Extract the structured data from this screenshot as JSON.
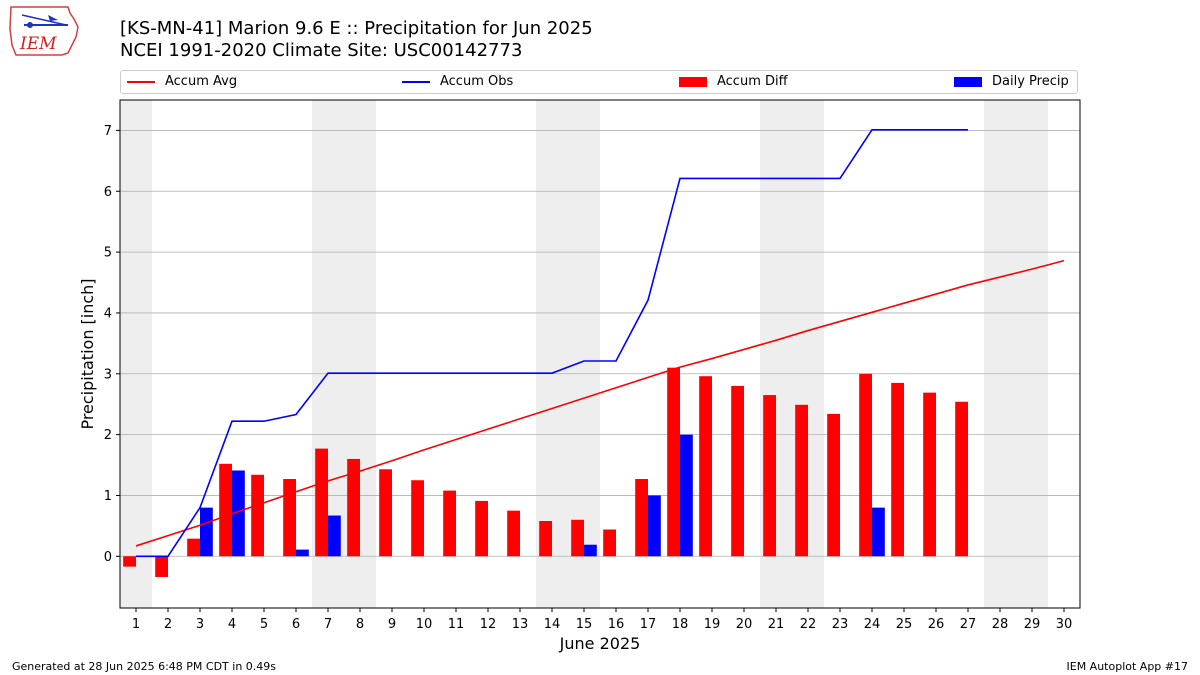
{
  "logo": {
    "text": "IEM"
  },
  "title_line1": "[KS-MN-41] Marion 9.6 E :: Precipitation for Jun 2025",
  "title_line2": "NCEI 1991-2020 Climate Site: USC00142773",
  "legend": [
    {
      "label": "Accum Avg",
      "kind": "line",
      "color": "#ff0000"
    },
    {
      "label": "Accum Obs",
      "kind": "line",
      "color": "#0000ff"
    },
    {
      "label": "Accum Diff",
      "kind": "patch",
      "color": "#ff0000"
    },
    {
      "label": "Daily Precip",
      "kind": "patch",
      "color": "#0000ff"
    }
  ],
  "footer_left": "Generated at 28 Jun 2025 6:48 PM CDT in 0.49s",
  "footer_right": "IEM Autoplot App #17",
  "chart_data": {
    "type": "bar",
    "xlabel": "June 2025",
    "ylabel": "Precipitation [inch]",
    "xlim": [
      0.5,
      30.5
    ],
    "ylim": [
      -0.85,
      7.5
    ],
    "x_ticks": [
      1,
      2,
      3,
      4,
      5,
      6,
      7,
      8,
      9,
      10,
      11,
      12,
      13,
      14,
      15,
      16,
      17,
      18,
      19,
      20,
      21,
      22,
      23,
      24,
      25,
      26,
      27,
      28,
      29,
      30
    ],
    "y_ticks": [
      0,
      1,
      2,
      3,
      4,
      5,
      6,
      7
    ],
    "grid": "horizontal",
    "weekend_shading": [
      [
        0.5,
        1.5
      ],
      [
        6.5,
        8.5
      ],
      [
        13.5,
        15.5
      ],
      [
        20.5,
        22.5
      ],
      [
        27.5,
        29.5
      ]
    ],
    "colors": {
      "avg": "#ff0000",
      "obs": "#0000ff",
      "diff": "#ff0000",
      "daily": "#0000ff",
      "shade": "#eeeeee",
      "grid": "#b0b0b0"
    },
    "series": [
      {
        "name": "Accum Avg",
        "kind": "line",
        "x": [
          1,
          2,
          3,
          4,
          5,
          6,
          7,
          8,
          9,
          10,
          11,
          12,
          13,
          14,
          15,
          16,
          17,
          18,
          19,
          20,
          21,
          22,
          23,
          24,
          25,
          26,
          27,
          28,
          29,
          30
        ],
        "values": [
          0.17,
          0.34,
          0.51,
          0.7,
          0.88,
          1.06,
          1.24,
          1.4,
          1.57,
          1.75,
          1.92,
          2.09,
          2.26,
          2.43,
          2.6,
          2.77,
          2.94,
          3.11,
          3.25,
          3.4,
          3.55,
          3.71,
          3.86,
          4.01,
          4.16,
          4.31,
          4.46,
          4.59,
          4.72,
          4.86
        ]
      },
      {
        "name": "Accum Obs",
        "kind": "line",
        "x": [
          1,
          2,
          3,
          4,
          5,
          6,
          7,
          8,
          9,
          10,
          11,
          12,
          13,
          14,
          15,
          16,
          17,
          18,
          19,
          20,
          21,
          22,
          23,
          24,
          25,
          26,
          27
        ],
        "values": [
          0.0,
          0.0,
          0.8,
          2.22,
          2.22,
          2.33,
          3.01,
          3.01,
          3.01,
          3.01,
          3.01,
          3.01,
          3.01,
          3.01,
          3.21,
          3.21,
          4.21,
          6.21,
          6.21,
          6.21,
          6.21,
          6.21,
          6.21,
          7.01,
          7.01,
          7.01,
          7.01
        ]
      },
      {
        "name": "Accum Diff",
        "kind": "bar",
        "x": [
          1,
          2,
          3,
          4,
          5,
          6,
          7,
          8,
          9,
          10,
          11,
          12,
          13,
          14,
          15,
          16,
          17,
          18,
          19,
          20,
          21,
          22,
          23,
          24,
          25,
          26,
          27
        ],
        "values": [
          -0.17,
          -0.34,
          0.29,
          1.52,
          1.34,
          1.27,
          1.77,
          1.6,
          1.43,
          1.25,
          1.08,
          0.91,
          0.75,
          0.58,
          0.6,
          0.44,
          1.27,
          3.1,
          2.96,
          2.8,
          2.65,
          2.49,
          2.34,
          3.0,
          2.85,
          2.69,
          2.54
        ]
      },
      {
        "name": "Daily Precip",
        "kind": "bar",
        "x": [
          1,
          2,
          3,
          4,
          5,
          6,
          7,
          8,
          9,
          10,
          11,
          12,
          13,
          14,
          15,
          16,
          17,
          18,
          19,
          20,
          21,
          22,
          23,
          24,
          25,
          26,
          27
        ],
        "values": [
          0,
          0,
          0.8,
          1.41,
          0,
          0.11,
          0.67,
          0,
          0,
          0,
          0,
          0,
          0,
          0,
          0.19,
          0,
          1.0,
          2.0,
          0,
          0,
          0,
          0,
          0,
          0.8,
          0,
          0,
          0
        ]
      }
    ]
  }
}
